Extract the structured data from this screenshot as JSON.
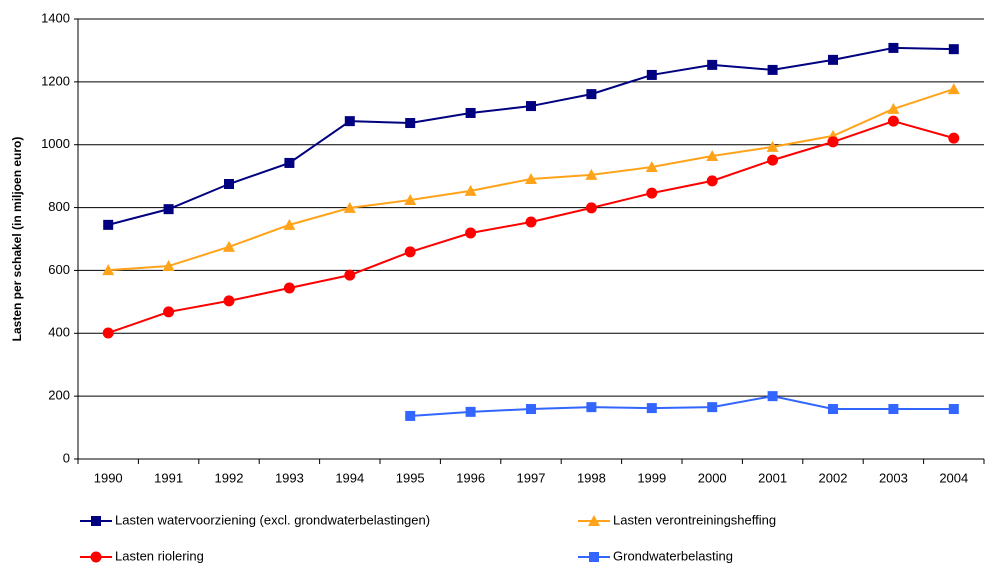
{
  "chart_data": {
    "type": "line",
    "y_label": "Lasten per schakel (in miljoen euro)",
    "categories": [
      "1990",
      "1991",
      "1992",
      "1993",
      "1994",
      "1995",
      "1996",
      "1997",
      "1998",
      "1999",
      "2000",
      "2001",
      "2002",
      "2003",
      "2004"
    ],
    "series": [
      {
        "name": "Lasten watervoorziening (excl. grondwaterbelastingen)",
        "color": "#000080",
        "marker": "square",
        "values": [
          745,
          795,
          875,
          942,
          1075,
          1069,
          1101,
          1123,
          1161,
          1222,
          1254,
          1238,
          1270,
          1308,
          1304
        ]
      },
      {
        "name": "Lasten verontreiningsheffing",
        "color": "#ffa31a",
        "marker": "triangle",
        "values": [
          601,
          614,
          675,
          745,
          799,
          824,
          853,
          891,
          904,
          929,
          964,
          993,
          1028,
          1114,
          1177
        ]
      },
      {
        "name": "Lasten riolering",
        "color": "#ff0000",
        "marker": "circle",
        "values": [
          401,
          468,
          503,
          544,
          585,
          659,
          719,
          754,
          799,
          846,
          885,
          951,
          1009,
          1075,
          1021
        ]
      },
      {
        "name": "Grondwaterbelasting",
        "color": "#3366ff",
        "marker": "square",
        "values": [
          null,
          null,
          null,
          null,
          null,
          137,
          150,
          159,
          165,
          162,
          165,
          200,
          159,
          159,
          159
        ]
      }
    ],
    "ylim": [
      0,
      1400
    ],
    "yticks": [
      0,
      200,
      400,
      600,
      800,
      1000,
      1200,
      1400
    ],
    "grid": true
  }
}
